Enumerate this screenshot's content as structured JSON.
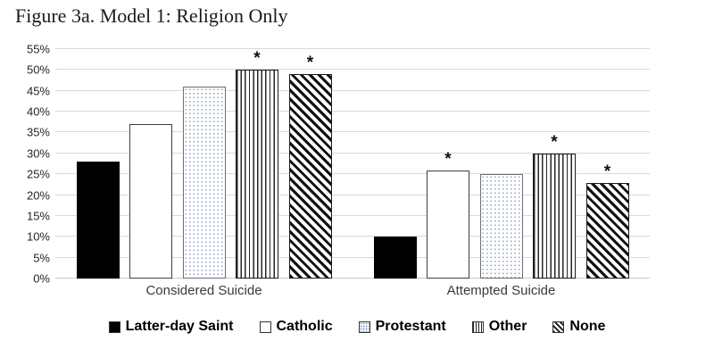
{
  "title": "Figure 3a. Model 1: Religion Only",
  "chart_data": {
    "type": "bar",
    "title": "Figure 3a. Model 1: Religion Only",
    "categories": [
      "Considered Suicide",
      "Attempted Suicide"
    ],
    "series": [
      {
        "name": "Latter-day Saint",
        "pattern": "solid",
        "values": [
          28,
          10
        ],
        "significant": [
          false,
          false
        ]
      },
      {
        "name": "Catholic",
        "pattern": "plain",
        "values": [
          37,
          26
        ],
        "significant": [
          false,
          true
        ]
      },
      {
        "name": "Protestant",
        "pattern": "dots",
        "values": [
          46,
          25
        ],
        "significant": [
          false,
          false
        ]
      },
      {
        "name": "Other",
        "pattern": "vstripes",
        "values": [
          50,
          30
        ],
        "significant": [
          true,
          true
        ]
      },
      {
        "name": "None",
        "pattern": "dstripes",
        "values": [
          49,
          23
        ],
        "significant": [
          true,
          true
        ]
      }
    ],
    "xlabel": "",
    "ylabel": "",
    "ylim": [
      0,
      55
    ],
    "yticks": [
      0,
      5,
      10,
      15,
      20,
      25,
      30,
      35,
      40,
      45,
      50,
      55
    ],
    "ytick_suffix": "%",
    "grid": true,
    "legend_position": "bottom",
    "sig_marker": "*",
    "colors": {
      "bar_fill_solid": "#000000",
      "dot_pattern": "#8ca0d0",
      "gridline": "#d9d9d9",
      "text": "#1b1b1b"
    }
  }
}
